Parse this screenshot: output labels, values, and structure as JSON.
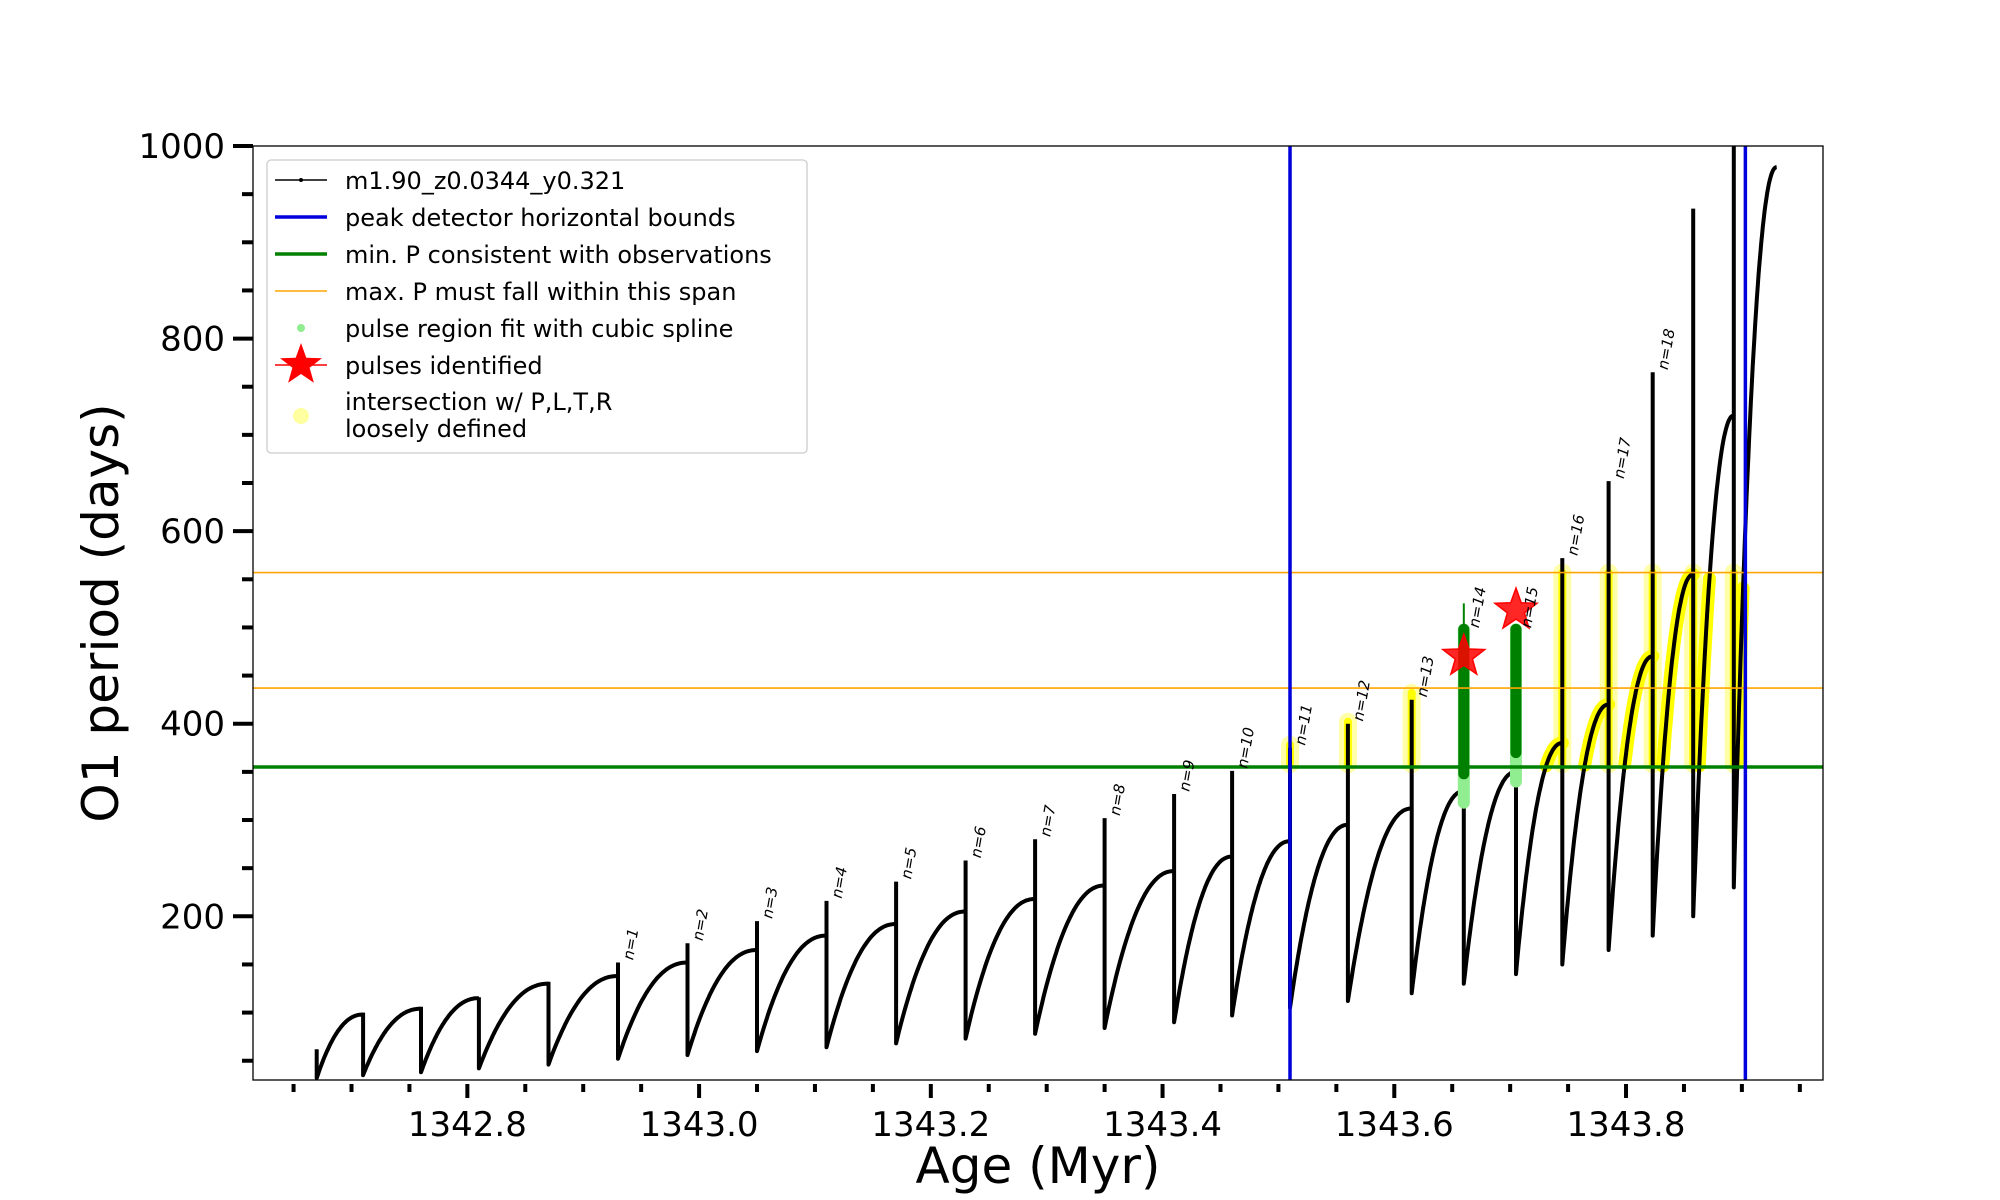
{
  "chart_data": {
    "type": "line",
    "xlabel": "Age (Myr)",
    "ylabel": "O1 period (days)",
    "xlim": [
      1342.615,
      1343.97
    ],
    "ylim": [
      30,
      1000
    ],
    "x_major_ticks": [
      1342.8,
      1343.0,
      1343.2,
      1343.4,
      1343.6,
      1343.8
    ],
    "x_minor_ticks": [
      1342.65,
      1342.7,
      1342.75,
      1342.85,
      1342.9,
      1342.95,
      1343.05,
      1343.1,
      1343.15,
      1343.25,
      1343.3,
      1343.35,
      1343.45,
      1343.5,
      1343.55,
      1343.65,
      1343.7,
      1343.75,
      1343.85,
      1343.9,
      1343.95
    ],
    "y_major_ticks": [
      200,
      400,
      600,
      800,
      1000
    ],
    "y_minor_ticks": [
      50,
      100,
      150,
      250,
      300,
      350,
      450,
      500,
      550,
      650,
      700,
      750,
      850,
      900,
      950
    ],
    "x_tick_labels": [
      "1342.8",
      "1343.0",
      "1343.2",
      "1343.4",
      "1343.6",
      "1343.8"
    ],
    "y_tick_labels": [
      "200",
      "400",
      "600",
      "800",
      "1000"
    ],
    "grid": false,
    "legend_position": "top-left",
    "colors": {
      "track": "#000000",
      "peak_bounds": "#0000dd",
      "min_period": "#008000",
      "max_period_span": "#ffa500",
      "spline_fit": "#90ee90",
      "pulses_identified": "#ff0000",
      "intersection": "#ffff00",
      "loosely_defined": "#ffffa0"
    },
    "legend": [
      {
        "label": "m1.90_z0.0344_y0.321",
        "marker": "line-dot",
        "color": "#000000"
      },
      {
        "label": "peak detector horizontal bounds",
        "marker": "line",
        "color": "#0000dd"
      },
      {
        "label": "min. P consistent with observations",
        "marker": "line",
        "color": "#008000"
      },
      {
        "label": "max. P must fall within this span",
        "marker": "thin-line",
        "color": "#ffa500"
      },
      {
        "label": "pulse region fit with cubic spline",
        "marker": "dot",
        "color": "#90ee90"
      },
      {
        "label": "pulses identified",
        "marker": "star",
        "color": "#ff0000"
      },
      {
        "label": "intersection w/ P,L,T,R",
        "marker": "none",
        "color": "#ffff00"
      },
      {
        "label": "loosely defined",
        "marker": "circle",
        "color": "#ffffa0"
      }
    ],
    "vertical_lines": [
      1343.51,
      1343.903
    ],
    "horizontal_lines": {
      "min_period": 355,
      "max_span": [
        437,
        557
      ]
    },
    "cycles": [
      {
        "start": 1342.67,
        "end": 1342.71,
        "low": 32,
        "peak": 98,
        "spike": 62,
        "label": ""
      },
      {
        "start": 1342.71,
        "end": 1342.76,
        "low": 35,
        "peak": 104,
        "spike": 100,
        "label": ""
      },
      {
        "start": 1342.76,
        "end": 1342.81,
        "low": 38,
        "peak": 115,
        "spike": 106,
        "label": ""
      },
      {
        "start": 1342.81,
        "end": 1342.87,
        "low": 42,
        "peak": 130,
        "spike": 116,
        "label": ""
      },
      {
        "start": 1342.87,
        "end": 1342.93,
        "low": 46,
        "peak": 138,
        "spike": 132,
        "label": ""
      },
      {
        "start": 1342.93,
        "end": 1342.99,
        "low": 52,
        "peak": 152,
        "spike": 152,
        "label": "n=1"
      },
      {
        "start": 1342.99,
        "end": 1343.05,
        "low": 56,
        "peak": 165,
        "spike": 172,
        "label": "n=2"
      },
      {
        "start": 1343.05,
        "end": 1343.11,
        "low": 60,
        "peak": 180,
        "spike": 195,
        "label": "n=3"
      },
      {
        "start": 1343.11,
        "end": 1343.17,
        "low": 64,
        "peak": 192,
        "spike": 216,
        "label": "n=4"
      },
      {
        "start": 1343.17,
        "end": 1343.23,
        "low": 68,
        "peak": 205,
        "spike": 236,
        "label": "n=5"
      },
      {
        "start": 1343.23,
        "end": 1343.29,
        "low": 73,
        "peak": 218,
        "spike": 258,
        "label": "n=6"
      },
      {
        "start": 1343.29,
        "end": 1343.35,
        "low": 78,
        "peak": 232,
        "spike": 280,
        "label": "n=7"
      },
      {
        "start": 1343.35,
        "end": 1343.41,
        "low": 84,
        "peak": 247,
        "spike": 302,
        "label": "n=8"
      },
      {
        "start": 1343.41,
        "end": 1343.46,
        "low": 90,
        "peak": 262,
        "spike": 327,
        "label": "n=9"
      },
      {
        "start": 1343.46,
        "end": 1343.51,
        "low": 97,
        "peak": 278,
        "spike": 351,
        "label": "n=10"
      },
      {
        "start": 1343.51,
        "end": 1343.56,
        "low": 105,
        "peak": 295,
        "spike": 375,
        "label": "n=11"
      },
      {
        "start": 1343.56,
        "end": 1343.615,
        "low": 112,
        "peak": 312,
        "spike": 400,
        "label": "n=12"
      },
      {
        "start": 1343.615,
        "end": 1343.66,
        "low": 120,
        "peak": 330,
        "spike": 425,
        "label": "n=13"
      },
      {
        "start": 1343.66,
        "end": 1343.705,
        "low": 130,
        "peak": 350,
        "spike": 497,
        "label": "n=14"
      },
      {
        "start": 1343.705,
        "end": 1343.745,
        "low": 140,
        "peak": 380,
        "spike": 497,
        "label": "n=15"
      },
      {
        "start": 1343.745,
        "end": 1343.785,
        "low": 150,
        "peak": 420,
        "spike": 572,
        "label": "n=16"
      },
      {
        "start": 1343.785,
        "end": 1343.823,
        "low": 165,
        "peak": 470,
        "spike": 652,
        "label": "n=17"
      },
      {
        "start": 1343.823,
        "end": 1343.858,
        "low": 180,
        "peak": 555,
        "spike": 765,
        "label": "n=18"
      },
      {
        "start": 1343.858,
        "end": 1343.893,
        "low": 200,
        "peak": 720,
        "spike": 935,
        "label": ""
      },
      {
        "start": 1343.893,
        "end": 1343.93,
        "low": 230,
        "peak": 978,
        "spike": 1000,
        "label": ""
      }
    ],
    "pulses_identified": [
      {
        "x": 1343.66,
        "y": 470
      },
      {
        "x": 1343.705,
        "y": 518
      }
    ],
    "green_fit_bands": [
      {
        "x": 1343.66,
        "y_from": 318,
        "y_to": 498
      },
      {
        "x": 1343.705,
        "y_from": 340,
        "y_to": 498
      }
    ],
    "intersection_bands": [
      {
        "x": 1343.51,
        "y_from": 358,
        "y_to": 378
      },
      {
        "x": 1343.56,
        "y_from": 358,
        "y_to": 402
      },
      {
        "x": 1343.615,
        "y_from": 358,
        "y_to": 432
      },
      {
        "x": 1343.745,
        "y_from": 358,
        "y_to": 557
      },
      {
        "x": 1343.785,
        "y_from": 358,
        "y_to": 557
      },
      {
        "x": 1343.823,
        "y_from": 358,
        "y_to": 557
      },
      {
        "x": 1343.858,
        "y_from": 358,
        "y_to": 557
      },
      {
        "x": 1343.893,
        "y_from": 358,
        "y_to": 557
      }
    ]
  }
}
